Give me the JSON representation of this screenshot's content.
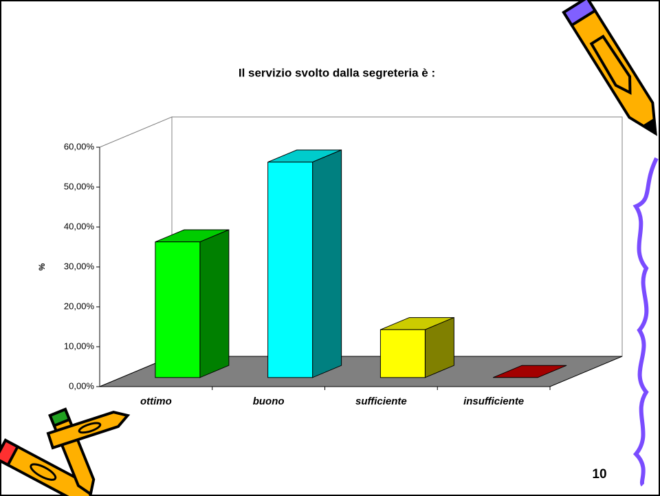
{
  "chart_data": {
    "type": "bar3d",
    "title": "Il servizio svolto dalla segreteria è :",
    "y_label": "%",
    "categories": [
      "ottimo",
      "buono",
      "sufficiente",
      "insufficiente"
    ],
    "values": [
      34,
      54,
      12,
      0
    ],
    "colors": [
      "#00ff00",
      "#00ffff",
      "#ffff00",
      "#cc0000"
    ],
    "ylim": [
      0,
      60
    ],
    "yticks": [
      {
        "value": 0,
        "label": "0,00%"
      },
      {
        "value": 10,
        "label": "10,00%"
      },
      {
        "value": 20,
        "label": "20,00%"
      },
      {
        "value": 30,
        "label": "30,00%"
      },
      {
        "value": 40,
        "label": "40,00%"
      },
      {
        "value": 50,
        "label": "50,00%"
      },
      {
        "value": 60,
        "label": "60,00%"
      }
    ]
  },
  "page_number": "10"
}
